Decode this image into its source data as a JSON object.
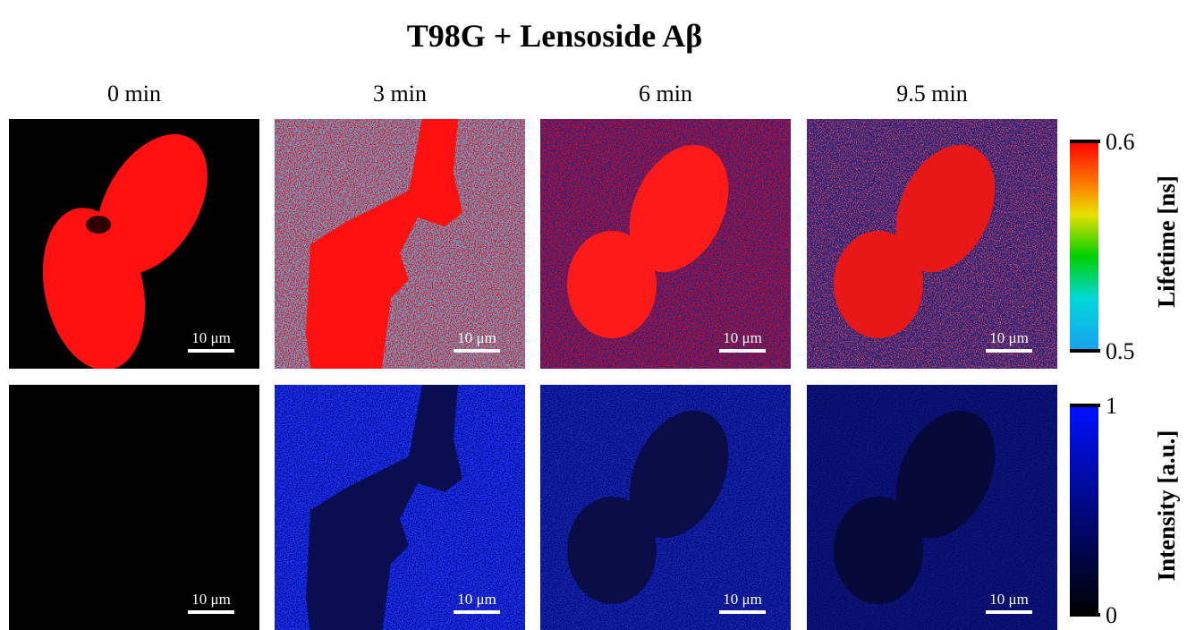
{
  "title": "T98G + Lensoside Aβ",
  "columns": [
    "0 min",
    "3 min",
    "6 min",
    "9.5 min"
  ],
  "scale_bar": "10 μm",
  "colorbars": [
    {
      "label": "Lifetime [ns]",
      "ticks": [
        0.5,
        0.6
      ]
    },
    {
      "label": "Intensity [a.u.]",
      "ticks": [
        0,
        1
      ]
    }
  ]
}
